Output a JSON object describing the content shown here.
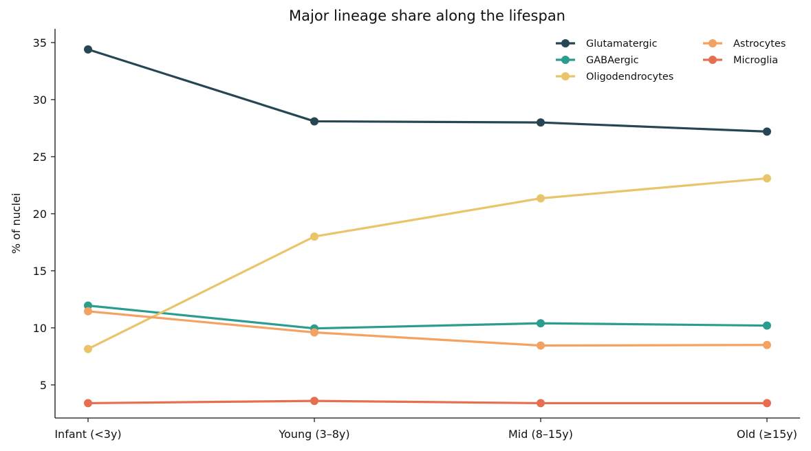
{
  "chart_data": {
    "type": "line",
    "title": "Major lineage share along the lifespan",
    "xlabel": "",
    "ylabel": "% of nuclei",
    "categories": [
      "Infant (<3y)",
      "Young (3–8y)",
      "Mid (8–15y)",
      "Old (≥15y)"
    ],
    "ylim": [
      2.1,
      36.2
    ],
    "yticks": [
      5,
      10,
      15,
      20,
      25,
      30,
      35
    ],
    "grid": false,
    "legend_position": "top-right",
    "series": [
      {
        "name": "Glutamatergic",
        "color": "#264653",
        "values": [
          34.4,
          28.1,
          28.0,
          27.2
        ]
      },
      {
        "name": "GABAergic",
        "color": "#2a9d8f",
        "values": [
          11.95,
          9.95,
          10.4,
          10.2
        ]
      },
      {
        "name": "Oligodendrocytes",
        "color": "#e9c46a",
        "values": [
          8.15,
          18.0,
          21.35,
          23.1
        ]
      },
      {
        "name": "Astrocytes",
        "color": "#f4a261",
        "values": [
          11.45,
          9.6,
          8.45,
          8.5
        ]
      },
      {
        "name": "Microglia",
        "color": "#e76f51",
        "values": [
          3.4,
          3.6,
          3.4,
          3.4
        ]
      }
    ]
  }
}
